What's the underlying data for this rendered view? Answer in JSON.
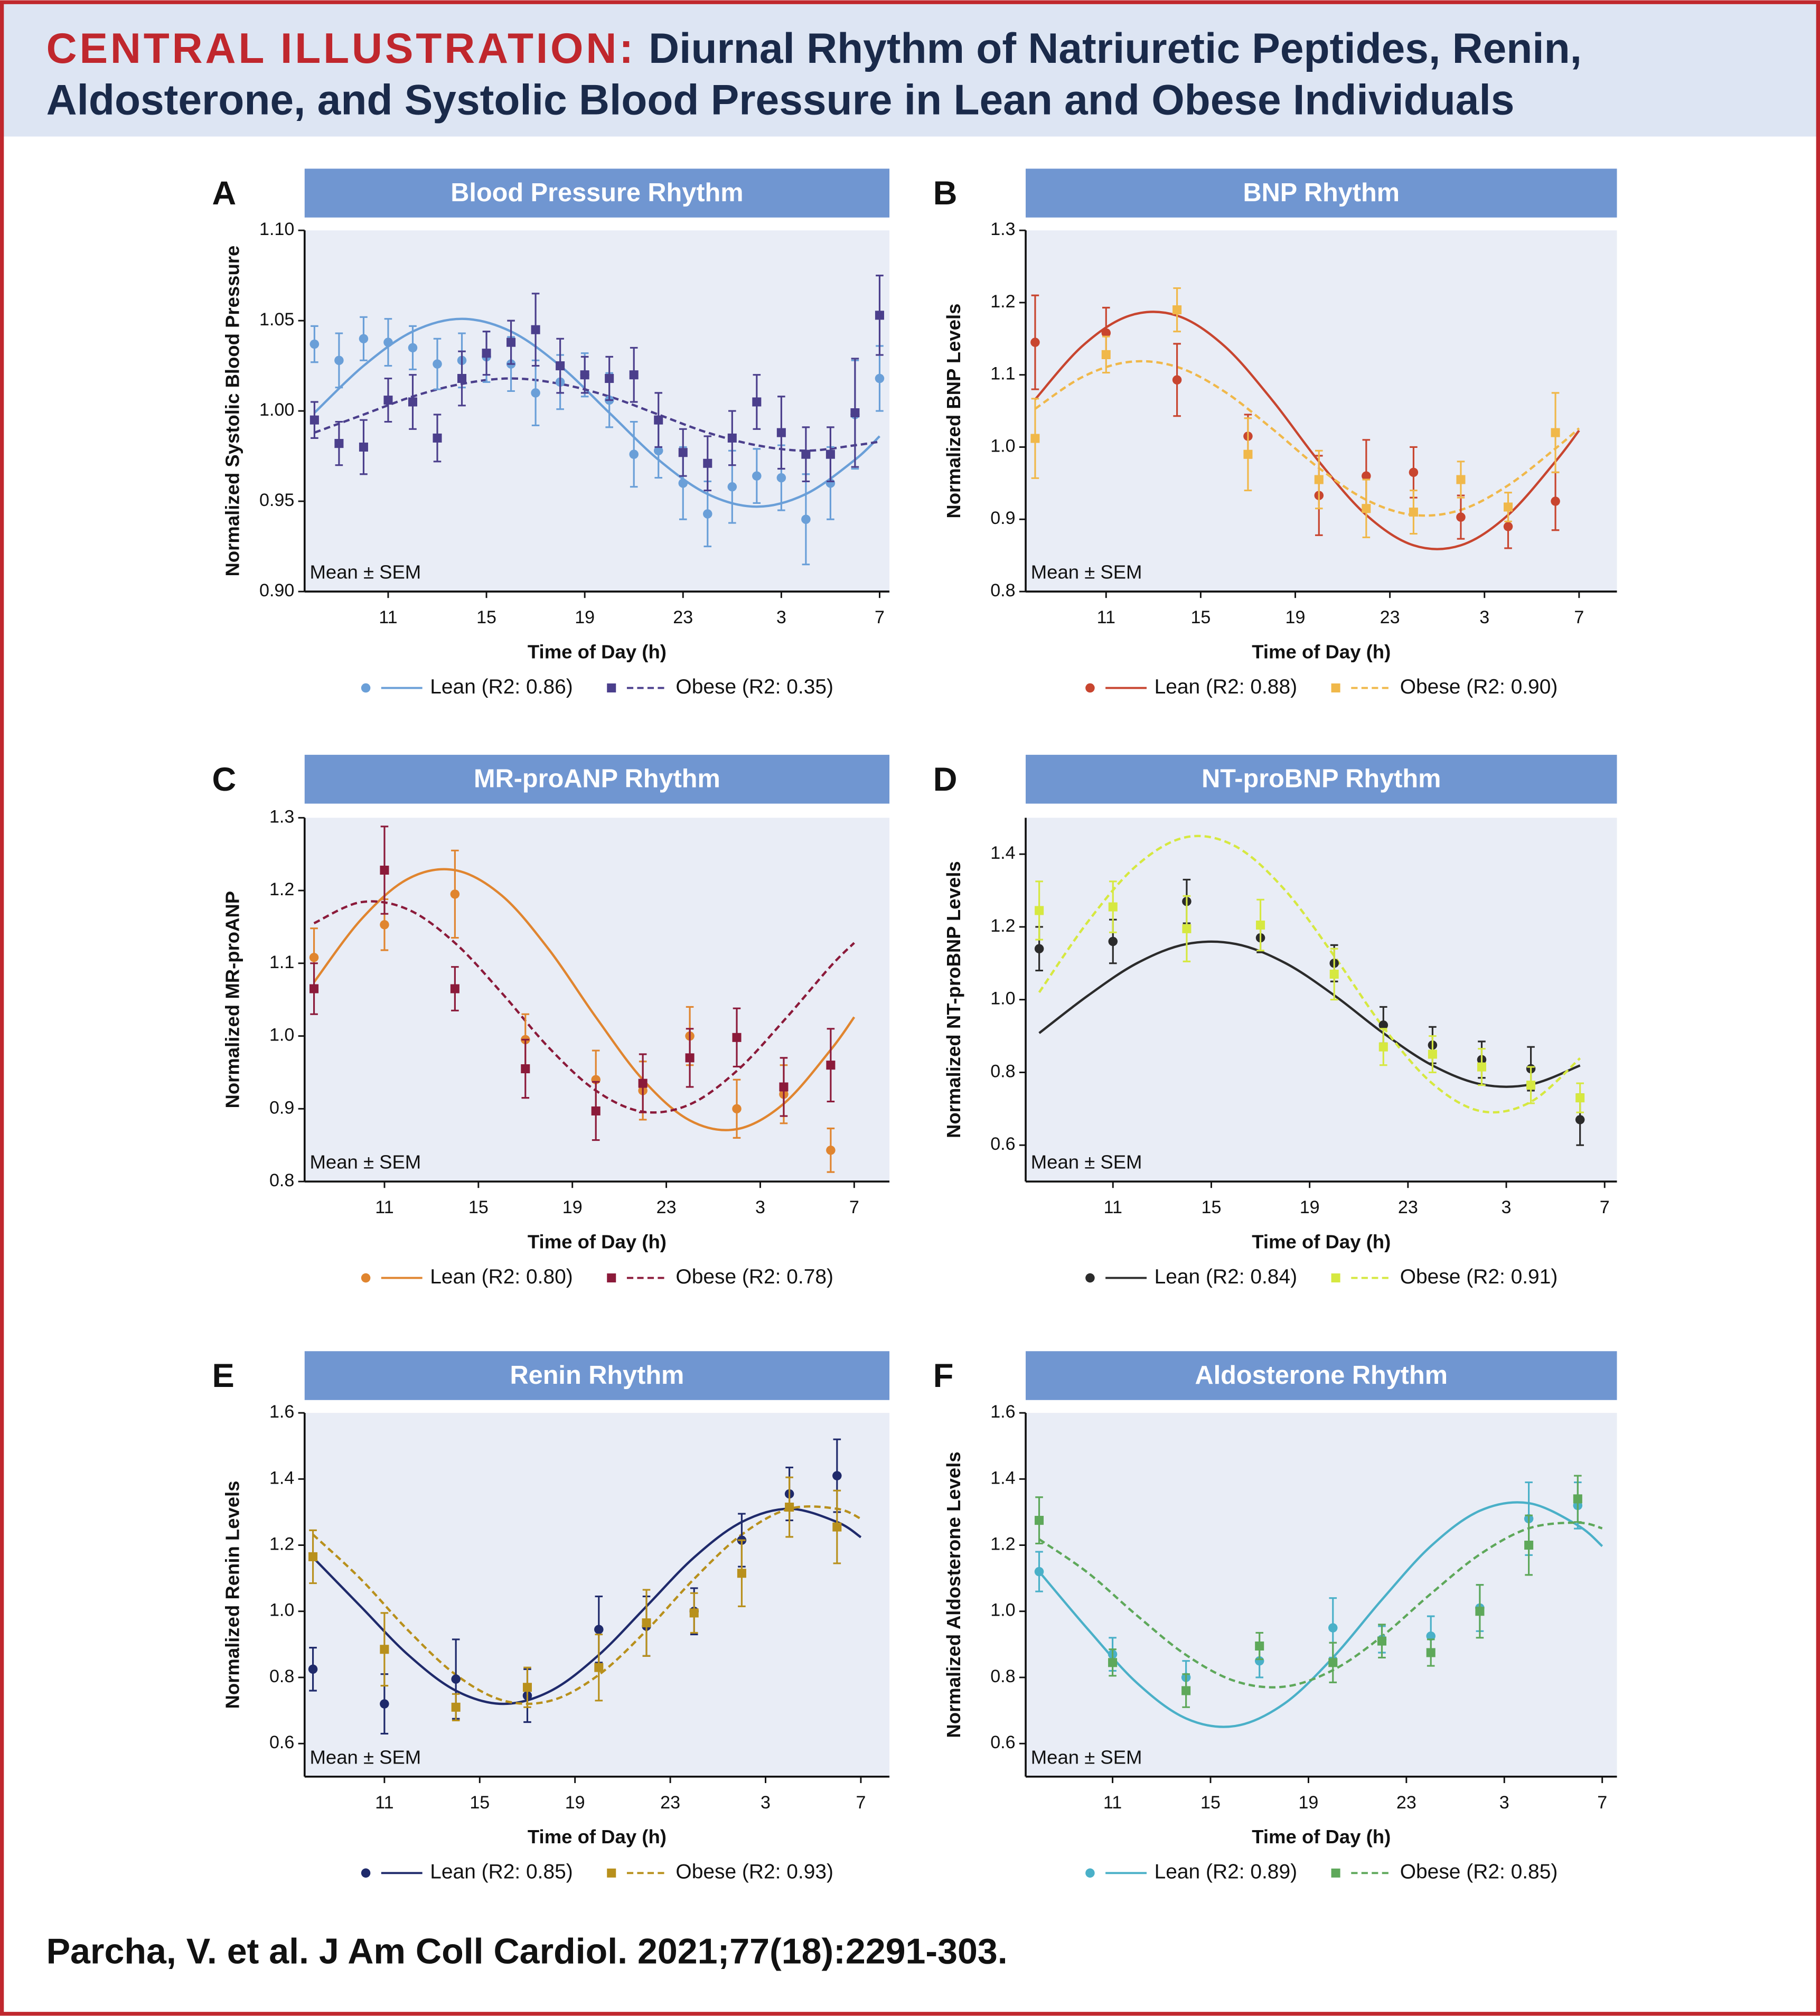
{
  "header": {
    "label": "CENTRAL ILLUSTRATION:",
    "title_lines": [
      "Diurnal Rhythm of Natriuretic Peptides, Renin,",
      "Aldosterone, and Systolic Blood Pressure in Lean and Obese Individuals"
    ]
  },
  "citation": "Parcha, V. et al. J Am Coll Cardiol. 2021;77(18):2291-303.",
  "chart_data": [
    {
      "type": "scatter",
      "panel": "A",
      "title": "Blood Pressure Rhythm",
      "ylabel": "Normalized Systolic Blood Pressure",
      "xlabel": "Time of Day (h)",
      "annotation": "Mean ± SEM",
      "xlim": [
        7.6,
        31.4
      ],
      "xticks": [
        11,
        15,
        19,
        23,
        {
          "value": 27,
          "label": "3"
        },
        {
          "value": 31,
          "label": "7"
        }
      ],
      "ylim": [
        0.9,
        1.1
      ],
      "yticks": [
        {
          "value": 0.9,
          "label": "0.90"
        },
        0.95,
        {
          "value": 1.0,
          "label": "1.00"
        },
        1.05,
        {
          "value": 1.1,
          "label": "1.10"
        }
      ],
      "x": [
        8,
        9,
        10,
        11,
        12,
        13,
        14,
        15,
        16,
        17,
        18,
        19,
        20,
        21,
        22,
        23,
        24,
        25,
        26,
        27,
        28,
        29,
        30,
        31
      ],
      "fit_x": [
        8,
        10,
        12,
        14,
        16,
        18,
        20,
        22,
        24,
        26,
        28,
        30,
        31
      ],
      "series": [
        {
          "name": "Lean (R2: 0.86)",
          "color": "#6a9fd8",
          "marker": "circle",
          "line_style": "solid",
          "values": [
            1.037,
            1.028,
            1.04,
            1.038,
            1.035,
            1.026,
            1.028,
            1.03,
            1.026,
            1.01,
            1.016,
            1.02,
            1.006,
            0.976,
            0.978,
            0.96,
            0.943,
            0.958,
            0.964,
            0.963,
            0.94,
            0.96,
            0.998,
            1.018
          ],
          "errors": [
            0.01,
            0.015,
            0.012,
            0.013,
            0.012,
            0.014,
            0.015,
            0.014,
            0.015,
            0.018,
            0.015,
            0.012,
            0.015,
            0.018,
            0.015,
            0.02,
            0.018,
            0.02,
            0.015,
            0.018,
            0.025,
            0.02,
            0.03,
            0.018
          ],
          "fit": [
            0.999,
            1.025,
            1.044,
            1.051,
            1.044,
            1.025,
            0.999,
            0.973,
            0.954,
            0.947,
            0.954,
            0.973,
            0.986
          ]
        },
        {
          "name": "Obese (R2: 0.35)",
          "color": "#4b3f8c",
          "marker": "square",
          "line_style": "dashed",
          "values": [
            0.995,
            0.982,
            0.98,
            1.006,
            1.005,
            0.985,
            1.018,
            1.032,
            1.038,
            1.045,
            1.025,
            1.02,
            1.018,
            1.02,
            0.995,
            0.977,
            0.971,
            0.985,
            1.005,
            0.988,
            0.976,
            0.976,
            0.999,
            1.053
          ],
          "errors": [
            0.01,
            0.012,
            0.015,
            0.012,
            0.015,
            0.013,
            0.015,
            0.012,
            0.012,
            0.02,
            0.015,
            0.01,
            0.012,
            0.015,
            0.015,
            0.013,
            0.015,
            0.015,
            0.015,
            0.02,
            0.015,
            0.015,
            0.03,
            0.022
          ],
          "fit": [
            0.988,
            0.998,
            1.008,
            1.015,
            1.018,
            1.015,
            1.008,
            0.998,
            0.988,
            0.981,
            0.978,
            0.981,
            0.983
          ]
        }
      ]
    },
    {
      "type": "scatter",
      "panel": "B",
      "title": "BNP Rhythm",
      "ylabel": "Normalized BNP Levels",
      "xlabel": "Time of Day (h)",
      "annotation": "Mean ± SEM",
      "xlim": [
        7.6,
        32.6
      ],
      "xticks": [
        11,
        15,
        19,
        23,
        {
          "value": 27,
          "label": "3"
        },
        {
          "value": 31,
          "label": "7"
        }
      ],
      "ylim": [
        0.8,
        1.3
      ],
      "yticks": [
        0.8,
        0.9,
        {
          "value": 1.0,
          "label": "1.0"
        },
        1.1,
        1.2,
        1.3
      ],
      "x": [
        8,
        11,
        14,
        17,
        20,
        22,
        24,
        26,
        28,
        30
      ],
      "fit_x": [
        8,
        10,
        12,
        14,
        16,
        18,
        20,
        22,
        24,
        26,
        28,
        30,
        31
      ],
      "series": [
        {
          "name": "Lean (R2: 0.88)",
          "color": "#c8452f",
          "marker": "circle",
          "line_style": "solid",
          "values": [
            1.145,
            1.158,
            1.093,
            1.015,
            0.933,
            0.96,
            0.965,
            0.903,
            0.89,
            0.925
          ],
          "errors": [
            0.065,
            0.035,
            0.05,
            0.03,
            0.055,
            0.05,
            0.035,
            0.03,
            0.03,
            0.04
          ],
          "fit": [
            1.066,
            1.14,
            1.182,
            1.182,
            1.14,
            1.066,
            0.98,
            0.906,
            0.864,
            0.864,
            0.906,
            0.98,
            1.023
          ]
        },
        {
          "name": "Obese (R2: 0.90)",
          "color": "#f0b84a",
          "marker": "square",
          "line_style": "dashed",
          "values": [
            1.012,
            1.128,
            1.19,
            0.99,
            0.955,
            0.915,
            0.91,
            0.955,
            0.917,
            1.02
          ],
          "errors": [
            0.055,
            0.025,
            0.03,
            0.05,
            0.04,
            0.04,
            0.03,
            0.025,
            0.02,
            0.055
          ],
          "fit": [
            1.053,
            1.097,
            1.118,
            1.111,
            1.077,
            1.026,
            0.971,
            0.927,
            0.906,
            0.913,
            0.947,
            0.998,
            1.026
          ]
        }
      ]
    },
    {
      "type": "scatter",
      "panel": "C",
      "title": "MR-proANP Rhythm",
      "ylabel": "Normalized MR-proANP",
      "xlabel": "Time of Day (h)",
      "annotation": "Mean ± SEM",
      "xlim": [
        7.6,
        32.5
      ],
      "xticks": [
        11,
        15,
        19,
        23,
        {
          "value": 27,
          "label": "3"
        },
        {
          "value": 31,
          "label": "7"
        }
      ],
      "ylim": [
        0.8,
        1.3
      ],
      "yticks": [
        0.8,
        0.9,
        {
          "value": 1.0,
          "label": "1.0"
        },
        1.1,
        1.2,
        1.3
      ],
      "x": [
        8,
        11,
        14,
        17,
        20,
        22,
        24,
        26,
        28,
        30
      ],
      "fit_x": [
        8,
        10,
        12,
        14,
        16,
        18,
        20,
        22,
        24,
        26,
        28,
        30,
        31
      ],
      "series": [
        {
          "name": "Lean (R2: 0.80)",
          "color": "#e0852f",
          "marker": "circle",
          "line_style": "solid",
          "values": [
            1.108,
            1.153,
            1.195,
            0.995,
            0.94,
            0.925,
            1.0,
            0.9,
            0.92,
            0.843
          ],
          "errors": [
            0.04,
            0.035,
            0.06,
            0.035,
            0.04,
            0.04,
            0.04,
            0.04,
            0.04,
            0.03
          ],
          "fit": [
            1.074,
            1.16,
            1.216,
            1.228,
            1.193,
            1.119,
            1.026,
            0.94,
            0.884,
            0.872,
            0.907,
            0.981,
            1.026
          ]
        },
        {
          "name": "Obese (R2: 0.78)",
          "color": "#8b1a3a",
          "marker": "square",
          "line_style": "dashed",
          "values": [
            1.065,
            1.228,
            1.065,
            0.955,
            0.897,
            0.935,
            0.97,
            0.998,
            0.93,
            0.96
          ],
          "errors": [
            0.035,
            0.06,
            0.03,
            0.04,
            0.04,
            0.04,
            0.04,
            0.04,
            0.04,
            0.05
          ],
          "fit": [
            1.155,
            1.184,
            1.174,
            1.128,
            1.059,
            0.984,
            0.925,
            0.896,
            0.906,
            0.952,
            1.021,
            1.096,
            1.128
          ]
        }
      ]
    },
    {
      "type": "scatter",
      "panel": "D",
      "title": "NT-proBNP Rhythm",
      "ylabel": "Normalized NT-proBNP Levels",
      "xlabel": "Time of Day (h)",
      "annotation": "Mean ± SEM",
      "xlim": [
        7.45,
        31.5
      ],
      "xticks": [
        11,
        15,
        19,
        23,
        {
          "value": 27,
          "label": "3"
        },
        {
          "value": 31,
          "label": "7"
        }
      ],
      "ylim": [
        0.5,
        1.5
      ],
      "yticks": [
        0.6,
        0.8,
        {
          "value": 1.0,
          "label": "1.0"
        },
        1.2,
        1.4
      ],
      "x": [
        8,
        11,
        14,
        17,
        20,
        22,
        24,
        26,
        28,
        30
      ],
      "fit_x": [
        8,
        10,
        12,
        14,
        16,
        18,
        20,
        22,
        24,
        26,
        28,
        30
      ],
      "series": [
        {
          "name": "Lean (R2: 0.84)",
          "color": "#2b2b2b",
          "marker": "circle",
          "line_style": "solid",
          "values": [
            1.14,
            1.16,
            1.27,
            1.17,
            1.1,
            0.93,
            0.875,
            0.835,
            0.81,
            0.67
          ],
          "errors": [
            0.06,
            0.06,
            0.06,
            0.04,
            0.05,
            0.05,
            0.05,
            0.05,
            0.06,
            0.07
          ],
          "fit": [
            0.908,
            1.012,
            1.101,
            1.153,
            1.153,
            1.101,
            1.012,
            0.908,
            0.819,
            0.767,
            0.767,
            0.819
          ]
        },
        {
          "name": "Obese (R2: 0.91)",
          "color": "#d6e840",
          "marker": "square",
          "line_style": "dashed",
          "values": [
            1.245,
            1.255,
            1.195,
            1.205,
            1.07,
            0.87,
            0.85,
            0.815,
            0.765,
            0.73
          ],
          "errors": [
            0.08,
            0.07,
            0.09,
            0.07,
            0.07,
            0.05,
            0.05,
            0.05,
            0.05,
            0.04
          ],
          "fit": [
            1.02,
            1.216,
            1.371,
            1.447,
            1.421,
            1.301,
            1.12,
            0.924,
            0.769,
            0.693,
            0.719,
            0.839
          ]
        }
      ]
    },
    {
      "type": "scatter",
      "panel": "E",
      "title": "Renin Rhythm",
      "ylabel": "Normalized Renin Levels",
      "xlabel": "Time of Day (h)",
      "annotation": "Mean ± SEM",
      "xlim": [
        7.65,
        32.2
      ],
      "xticks": [
        11,
        15,
        19,
        23,
        {
          "value": 27,
          "label": "3"
        },
        {
          "value": 31,
          "label": "7"
        }
      ],
      "ylim": [
        0.5,
        1.6
      ],
      "yticks": [
        0.6,
        0.8,
        {
          "value": 1.0,
          "label": "1.0"
        },
        1.2,
        1.4,
        1.6
      ],
      "x": [
        8,
        11,
        14,
        17,
        20,
        22,
        24,
        26,
        28,
        30
      ],
      "fit_x": [
        8,
        10,
        12,
        14,
        16,
        18,
        20,
        22,
        24,
        26,
        28,
        30,
        31
      ],
      "series": [
        {
          "name": "Lean (R2: 0.85)",
          "color": "#1f2a6b",
          "marker": "circle",
          "line_style": "solid",
          "values": [
            0.825,
            0.72,
            0.795,
            0.745,
            0.945,
            0.955,
            1.0,
            1.215,
            1.355,
            1.41
          ],
          "errors": [
            0.065,
            0.09,
            0.12,
            0.08,
            0.1,
            0.09,
            0.07,
            0.08,
            0.08,
            0.11
          ],
          "fit": [
            1.163,
            1.015,
            0.868,
            0.76,
            0.72,
            0.76,
            0.868,
            1.015,
            1.163,
            1.27,
            1.31,
            1.27,
            1.224
          ]
        },
        {
          "name": "Obese (R2: 0.93)",
          "color": "#b8901c",
          "marker": "square",
          "line_style": "dashed",
          "values": [
            1.165,
            0.885,
            0.71,
            0.77,
            0.83,
            0.965,
            0.995,
            1.115,
            1.315,
            1.255
          ],
          "errors": [
            0.08,
            0.11,
            0.04,
            0.06,
            0.1,
            0.1,
            0.06,
            0.1,
            0.09,
            0.11
          ],
          "fit": [
            1.232,
            1.098,
            0.942,
            0.808,
            0.73,
            0.73,
            0.808,
            0.942,
            1.098,
            1.232,
            1.31,
            1.31,
            1.28
          ]
        }
      ]
    },
    {
      "type": "scatter",
      "panel": "F",
      "title": "Aldosterone Rhythm",
      "ylabel": "Normalized Aldosterone Levels",
      "xlabel": "Time of Day (h)",
      "annotation": "Mean ± SEM",
      "xlim": [
        7.45,
        31.6
      ],
      "xticks": [
        11,
        15,
        19,
        23,
        {
          "value": 27,
          "label": "3"
        },
        {
          "value": 31,
          "label": "7"
        }
      ],
      "ylim": [
        0.5,
        1.6
      ],
      "yticks": [
        0.6,
        0.8,
        {
          "value": 1.0,
          "label": "1.0"
        },
        1.2,
        1.4,
        1.6
      ],
      "x": [
        8,
        11,
        14,
        17,
        20,
        22,
        24,
        26,
        28,
        30
      ],
      "fit_x": [
        8,
        10,
        12,
        14,
        16,
        18,
        20,
        22,
        24,
        26,
        28,
        30,
        31
      ],
      "series": [
        {
          "name": "Lean (R2: 0.89)",
          "color": "#4ab0c8",
          "marker": "circle",
          "line_style": "solid",
          "values": [
            1.12,
            0.87,
            0.8,
            0.85,
            0.95,
            0.915,
            0.925,
            1.01,
            1.28,
            1.32
          ],
          "errors": [
            0.06,
            0.05,
            0.05,
            0.05,
            0.09,
            0.04,
            0.06,
            0.07,
            0.11,
            0.07
          ],
          "fit": [
            1.12,
            0.945,
            0.783,
            0.676,
            0.653,
            0.72,
            0.86,
            1.035,
            1.197,
            1.304,
            1.327,
            1.26,
            1.197
          ]
        },
        {
          "name": "Obese (R2: 0.85)",
          "color": "#5ea85a",
          "marker": "square",
          "line_style": "dashed",
          "values": [
            1.275,
            0.845,
            0.76,
            0.895,
            0.845,
            0.91,
            0.875,
            1.0,
            1.2,
            1.34
          ],
          "errors": [
            0.07,
            0.04,
            0.05,
            0.04,
            0.06,
            0.05,
            0.04,
            0.08,
            0.09,
            0.07
          ],
          "fit": [
            1.218,
            1.116,
            0.987,
            0.868,
            0.789,
            0.772,
            0.822,
            0.924,
            1.053,
            1.172,
            1.251,
            1.268,
            1.251
          ]
        }
      ]
    }
  ]
}
